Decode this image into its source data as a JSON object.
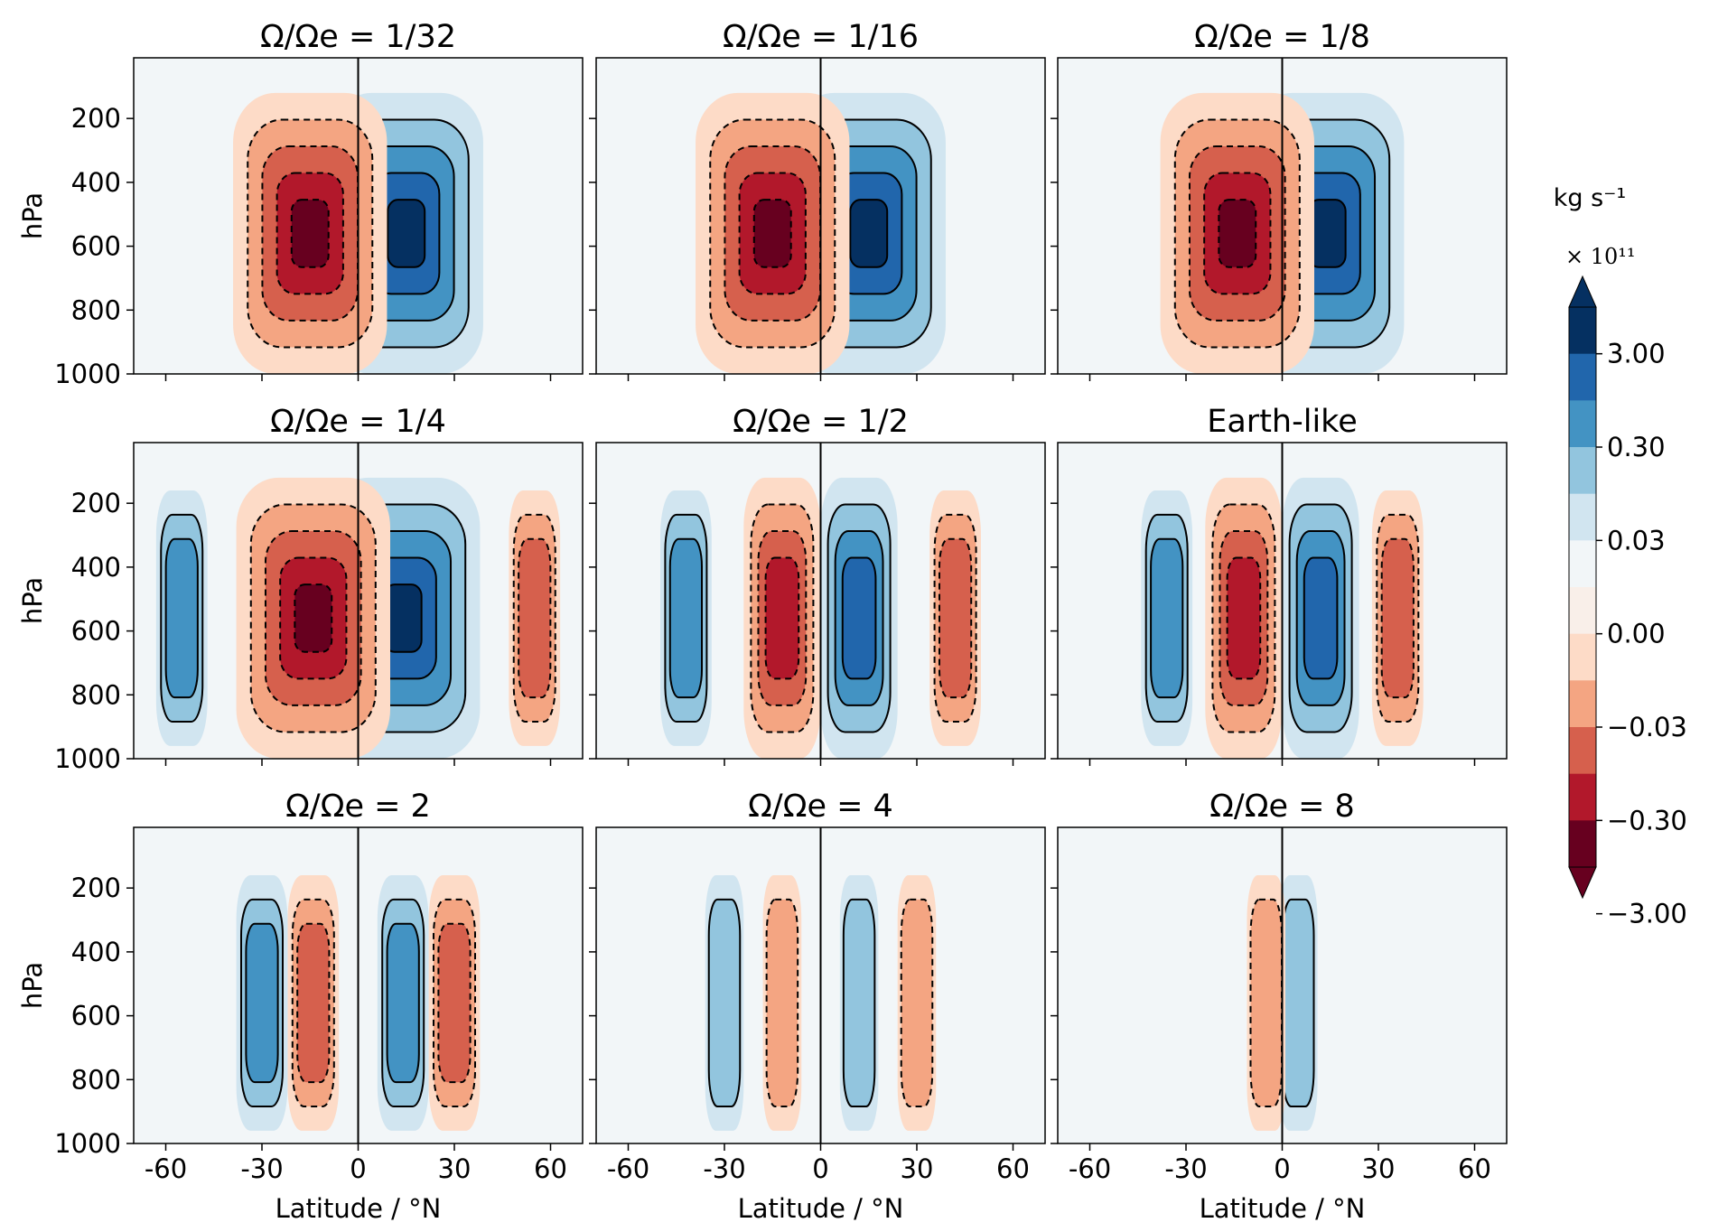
{
  "chart_data": {
    "type": "heatmap",
    "description_kind": "filled contour panels of mass streamfunction",
    "xlabel": "Latitude / °N",
    "ylabel": "hPa",
    "x_ticks": [
      -60,
      -30,
      0,
      30,
      60
    ],
    "x_tick_labels": [
      "-60",
      "-30",
      "0",
      "30",
      "60"
    ],
    "xlim": [
      -70,
      70
    ],
    "y_ticks": [
      200,
      400,
      600,
      800,
      1000
    ],
    "y_tick_labels": [
      "200",
      "400",
      "600",
      "800",
      "1000"
    ],
    "ylim": [
      1000,
      10
    ],
    "colorbar": {
      "unit": "kg s⁻¹",
      "multiplier": "× 10¹¹",
      "tick_labels": [
        "3.00",
        "0.30",
        "0.03",
        "0.00",
        "−0.03",
        "−0.30",
        "−3.00"
      ],
      "colors": [
        "#053061",
        "#2166ac",
        "#4393c3",
        "#92c5de",
        "#d1e5f0",
        "#f2f6f8",
        "#f9efe9",
        "#fddbc7",
        "#f4a582",
        "#d6604d",
        "#b2182b",
        "#67001f"
      ]
    },
    "panels": [
      {
        "title": "Ω/Ωe = 1/32",
        "cells": [
          {
            "lat": 15,
            "amp": 4
          },
          {
            "lat": -15,
            "amp": -4
          }
        ]
      },
      {
        "title": "Ω/Ωe = 1/16",
        "cells": [
          {
            "lat": 15,
            "amp": 4
          },
          {
            "lat": -15,
            "amp": -4
          }
        ]
      },
      {
        "title": "Ω/Ωe = 1/8",
        "cells": [
          {
            "lat": 14,
            "amp": 4
          },
          {
            "lat": -14,
            "amp": -4
          }
        ]
      },
      {
        "title": "Ω/Ωe = 1/4",
        "cells": [
          {
            "lat": 14,
            "amp": 4
          },
          {
            "lat": -14,
            "amp": -4
          },
          {
            "lat": 55,
            "amp": -2
          },
          {
            "lat": -55,
            "amp": 2
          }
        ]
      },
      {
        "title": "Ω/Ωe = 1/2",
        "cells": [
          {
            "lat": 12,
            "amp": 3
          },
          {
            "lat": -12,
            "amp": -3
          },
          {
            "lat": 42,
            "amp": -2
          },
          {
            "lat": -42,
            "amp": 2
          }
        ]
      },
      {
        "title": "Earth-like",
        "cells": [
          {
            "lat": 12,
            "amp": 3
          },
          {
            "lat": -12,
            "amp": -3
          },
          {
            "lat": 36,
            "amp": -2
          },
          {
            "lat": -36,
            "amp": 2
          }
        ]
      },
      {
        "title": "Ω/Ωe = 2",
        "cells": [
          {
            "lat": 14,
            "amp": 2
          },
          {
            "lat": -14,
            "amp": -2
          },
          {
            "lat": 30,
            "amp": -2
          },
          {
            "lat": -30,
            "amp": 2
          }
        ]
      },
      {
        "title": "Ω/Ωe = 4",
        "cells": [
          {
            "lat": 12,
            "amp": 1
          },
          {
            "lat": -12,
            "amp": -1
          },
          {
            "lat": 30,
            "amp": -1
          },
          {
            "lat": -30,
            "amp": 1
          }
        ]
      },
      {
        "title": "Ω/Ωe = 8",
        "cells": [
          {
            "lat": 5,
            "amp": 1
          },
          {
            "lat": -5,
            "amp": -1
          }
        ]
      }
    ]
  }
}
